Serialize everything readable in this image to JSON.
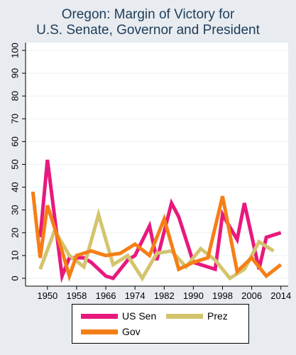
{
  "chart_data": {
    "type": "line",
    "title": [
      "Oregon: Margin of Victory for",
      "U.S. Senate, Governor and President"
    ],
    "xlabel": "",
    "ylabel": "",
    "xlim": [
      1944,
      2016
    ],
    "ylim": [
      0,
      100
    ],
    "xticks": [
      1950,
      1958,
      1966,
      1974,
      1982,
      1990,
      1998,
      2006,
      2014
    ],
    "yticks": [
      0,
      10,
      20,
      30,
      40,
      50,
      60,
      70,
      80,
      90,
      100
    ],
    "grid": "horizontal",
    "legend_position": "bottom",
    "series": [
      {
        "name": "US Sen",
        "color": "#e8197d",
        "x": [
          1948,
          1950,
          1954,
          1956,
          1960,
          1962,
          1966,
          1968,
          1972,
          1974,
          1978,
          1980,
          1984,
          1986,
          1990,
          1992,
          1996,
          1998,
          2002,
          2004,
          2008,
          2010,
          2014
        ],
        "y": [
          18,
          52,
          1,
          9,
          9,
          7,
          1,
          0,
          8,
          10,
          23,
          8,
          33,
          27,
          7,
          6,
          4,
          28,
          17,
          33,
          4,
          18,
          20
        ]
      },
      {
        "name": "Prez",
        "color": "#d4c46e",
        "x": [
          1948,
          1952,
          1956,
          1960,
          1964,
          1968,
          1972,
          1976,
          1980,
          1984,
          1988,
          1992,
          1996,
          2000,
          2004,
          2008,
          2012
        ],
        "y": [
          4,
          21,
          10,
          5,
          28,
          6,
          10,
          0,
          11,
          12,
          5,
          13,
          8,
          0,
          4,
          16,
          12
        ]
      },
      {
        "name": "Gov",
        "color": "#f57f17",
        "x": [
          1946,
          1948,
          1950,
          1954,
          1956,
          1958,
          1962,
          1966,
          1970,
          1974,
          1978,
          1982,
          1986,
          1990,
          1994,
          1998,
          2002,
          2006,
          2010,
          2014
        ],
        "y": [
          38,
          9,
          32,
          12,
          1,
          10,
          12,
          10,
          11,
          15,
          10,
          26,
          4,
          7,
          9,
          36,
          3,
          9,
          1,
          6
        ]
      }
    ]
  }
}
